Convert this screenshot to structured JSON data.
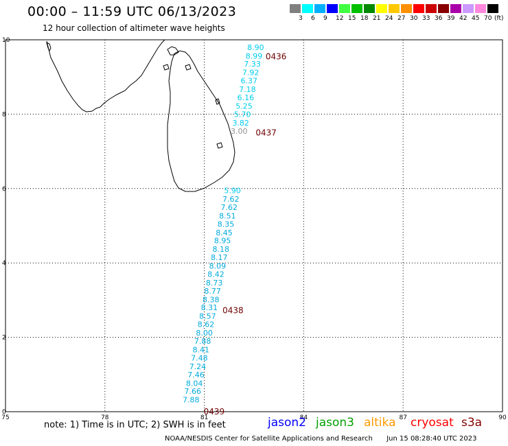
{
  "header": {
    "title": "00:00 – 11:59 UTC 06/13/2023",
    "subtitle": "12 hour collection of altimeter wave heights"
  },
  "colorbar": {
    "colors": [
      "#808080",
      "#00ffff",
      "#00b0ff",
      "#0000ff",
      "#40ff40",
      "#00c000",
      "#008800",
      "#ffff00",
      "#ffc800",
      "#ff9000",
      "#ff0000",
      "#cc0000",
      "#880000",
      "#aa00aa",
      "#cc99ff",
      "#ff88dd",
      "#000000"
    ],
    "labels": [
      "3",
      "6",
      "9",
      "12",
      "15",
      "18",
      "21",
      "24",
      "27",
      "30",
      "33",
      "36",
      "39",
      "42",
      "45",
      "70"
    ],
    "unit": "(ft)"
  },
  "axes": {
    "x_ticks": [
      "75",
      "78",
      "81",
      "84",
      "87",
      "90"
    ],
    "y_ticks": [
      "0",
      "2",
      "4",
      "6",
      "8",
      "10"
    ]
  },
  "chart_data": {
    "type": "scatter",
    "x_range_deg_e": [
      75,
      90
    ],
    "y_range_deg_n": [
      0,
      10
    ],
    "grid": true,
    "observations_ft": [
      {
        "lon": 82.55,
        "lat": 9.8,
        "swh": "8.90",
        "color": "#00ccee"
      },
      {
        "lon": 82.5,
        "lat": 9.57,
        "swh": "8.99",
        "color": "#00ccee"
      },
      {
        "lon": 82.45,
        "lat": 9.35,
        "swh": "7.33",
        "color": "#00ccee"
      },
      {
        "lon": 82.4,
        "lat": 9.12,
        "swh": "7.92",
        "color": "#00ccee"
      },
      {
        "lon": 82.35,
        "lat": 8.9,
        "swh": "6.37",
        "color": "#00ccee"
      },
      {
        "lon": 82.3,
        "lat": 8.67,
        "swh": "7.18",
        "color": "#00ccee"
      },
      {
        "lon": 82.25,
        "lat": 8.45,
        "swh": "6.16",
        "color": "#00ccee"
      },
      {
        "lon": 82.2,
        "lat": 8.22,
        "swh": "5.25",
        "color": "#00ccee"
      },
      {
        "lon": 82.15,
        "lat": 8.0,
        "swh": "5.70",
        "color": "#00ccee"
      },
      {
        "lon": 82.1,
        "lat": 7.77,
        "swh": "3.82",
        "color": "#00ccee"
      },
      {
        "lon": 82.05,
        "lat": 7.55,
        "swh": "3.00",
        "color": "#909090"
      },
      {
        "lon": 81.85,
        "lat": 5.95,
        "swh": "5.90",
        "color": "#00ccee"
      },
      {
        "lon": 81.8,
        "lat": 5.72,
        "swh": "7.62",
        "color": "#00aadd"
      },
      {
        "lon": 81.75,
        "lat": 5.5,
        "swh": "7.62",
        "color": "#00aadd"
      },
      {
        "lon": 81.7,
        "lat": 5.27,
        "swh": "8.51",
        "color": "#00aadd"
      },
      {
        "lon": 81.65,
        "lat": 5.05,
        "swh": "8.35",
        "color": "#00aadd"
      },
      {
        "lon": 81.6,
        "lat": 4.82,
        "swh": "8.45",
        "color": "#00aadd"
      },
      {
        "lon": 81.55,
        "lat": 4.6,
        "swh": "8.95",
        "color": "#00aadd"
      },
      {
        "lon": 81.5,
        "lat": 4.37,
        "swh": "8.18",
        "color": "#00aadd"
      },
      {
        "lon": 81.45,
        "lat": 4.15,
        "swh": "8.17",
        "color": "#00aadd"
      },
      {
        "lon": 81.4,
        "lat": 3.92,
        "swh": "8.09",
        "color": "#00aadd"
      },
      {
        "lon": 81.35,
        "lat": 3.7,
        "swh": "8.42",
        "color": "#00aadd"
      },
      {
        "lon": 81.3,
        "lat": 3.47,
        "swh": "8.73",
        "color": "#00aadd"
      },
      {
        "lon": 81.25,
        "lat": 3.25,
        "swh": "8.77",
        "color": "#00aadd"
      },
      {
        "lon": 81.2,
        "lat": 3.02,
        "swh": "8.38",
        "color": "#00aadd"
      },
      {
        "lon": 81.15,
        "lat": 2.8,
        "swh": "8.31",
        "color": "#00aadd"
      },
      {
        "lon": 81.1,
        "lat": 2.57,
        "swh": "8.57",
        "color": "#00aadd"
      },
      {
        "lon": 81.05,
        "lat": 2.35,
        "swh": "8.62",
        "color": "#00aadd"
      },
      {
        "lon": 81.0,
        "lat": 2.12,
        "swh": "8.00",
        "color": "#00aadd"
      },
      {
        "lon": 80.95,
        "lat": 1.9,
        "swh": "7.88",
        "color": "#00aadd"
      },
      {
        "lon": 80.9,
        "lat": 1.67,
        "swh": "8.41",
        "color": "#00aadd"
      },
      {
        "lon": 80.85,
        "lat": 1.45,
        "swh": "7.48",
        "color": "#00aadd"
      },
      {
        "lon": 80.8,
        "lat": 1.22,
        "swh": "7.24",
        "color": "#00aadd"
      },
      {
        "lon": 80.75,
        "lat": 1.0,
        "swh": "7.46",
        "color": "#00aadd"
      },
      {
        "lon": 80.7,
        "lat": 0.77,
        "swh": "8.04",
        "color": "#00aadd"
      },
      {
        "lon": 80.65,
        "lat": 0.55,
        "swh": "7.66",
        "color": "#00aadd"
      },
      {
        "lon": 80.6,
        "lat": 0.32,
        "swh": "7.88",
        "color": "#00aadd"
      }
    ],
    "pass_times": [
      {
        "lon": 82.85,
        "lat": 9.55,
        "label": "0436"
      },
      {
        "lon": 82.55,
        "lat": 7.5,
        "label": "0437"
      },
      {
        "lon": 81.55,
        "lat": 2.72,
        "label": "0438"
      },
      {
        "lon": 80.98,
        "lat": 0.0,
        "label": "0439"
      }
    ]
  },
  "footer": {
    "note": "note: 1) Time is in UTC; 2) SWH is in feet",
    "satellites": [
      {
        "name": "jason2",
        "color": "#0000ff"
      },
      {
        "name": "jason3",
        "color": "#00a000"
      },
      {
        "name": "altika",
        "color": "#ff9900"
      },
      {
        "name": "cryosat",
        "color": "#ff0000"
      },
      {
        "name": "s3a",
        "color": "#880000"
      }
    ],
    "credit": "NOAA/NESDIS Center for Satellite Applications and Research",
    "timestamp": "Jun 15 08:28:40 UTC 2023"
  }
}
